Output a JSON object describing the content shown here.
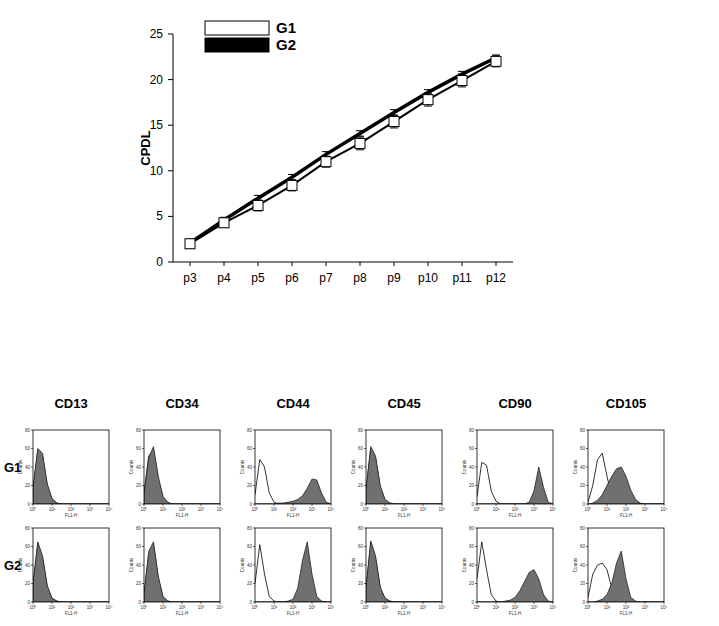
{
  "chart_data": [
    {
      "type": "line",
      "y_label": "CPDL",
      "categories": [
        "p3",
        "p4",
        "p5",
        "p6",
        "p7",
        "p8",
        "p9",
        "p10",
        "p11",
        "p12"
      ],
      "ylim": [
        0,
        25
      ],
      "yticks": [
        0,
        5,
        10,
        15,
        20,
        25
      ],
      "legend": "top-left",
      "series": [
        {
          "name": "G1",
          "color": "#ffffff",
          "marker": "square",
          "line_style": "solid",
          "values": [
            2.0,
            4.3,
            6.2,
            8.4,
            11.0,
            13.0,
            15.4,
            17.8,
            19.9,
            22.0
          ],
          "errors": [
            0.5,
            0.5,
            0.6,
            0.6,
            0.6,
            0.7,
            0.7,
            0.7,
            0.7,
            0.6
          ]
        },
        {
          "name": "G2",
          "color": "#000000",
          "marker": "none",
          "line_style": "solid",
          "values": [
            2.1,
            4.6,
            7.0,
            9.3,
            11.8,
            14.1,
            16.4,
            18.6,
            20.6,
            22.4
          ],
          "errors": [
            0.3,
            0.3,
            0.3,
            0.3,
            0.3,
            0.3,
            0.3,
            0.3,
            0.3,
            0.3
          ]
        }
      ]
    },
    {
      "type": "flow_histogram",
      "log": "x",
      "x": [
        1,
        1.778,
        3.162,
        5.623,
        10,
        17.78,
        31.62,
        56.23,
        100,
        177.8,
        316.2,
        562.3,
        1000,
        1778,
        3162,
        5623,
        10000
      ],
      "xlim": [
        1,
        10000
      ],
      "xticks": [
        {
          "value": 1,
          "label": "10⁰"
        },
        {
          "value": 10,
          "label": "10¹"
        },
        {
          "value": 100,
          "label": "10²"
        },
        {
          "value": 1000,
          "label": "10³"
        },
        {
          "value": 10000,
          "label": "10⁴"
        }
      ],
      "ylim": [
        0,
        80
      ],
      "yticks": [
        0,
        20,
        40,
        60,
        80
      ],
      "x_label": "FL1-H",
      "y_label": "Counts",
      "columns": [
        "CD13",
        "CD34",
        "CD44",
        "CD45",
        "CD90",
        "CD105"
      ],
      "rows": [
        {
          "name": "G1",
          "panels": [
            {
              "series": [
                {
                  "color": "#ffffff",
                  "values": [
                    15,
                    58,
                    52,
                    20,
                    5,
                    1,
                    0,
                    0,
                    0,
                    0,
                    0,
                    0,
                    0,
                    0,
                    0,
                    0,
                    0
                  ]
                },
                {
                  "color": "#707070",
                  "values": [
                    18,
                    60,
                    55,
                    22,
                    6,
                    1,
                    0,
                    0,
                    0,
                    0,
                    0,
                    0,
                    0,
                    0,
                    0,
                    0,
                    0
                  ]
                }
              ]
            },
            {
              "series": [
                {
                  "color": "#ffffff",
                  "values": [
                    12,
                    52,
                    58,
                    26,
                    7,
                    1,
                    0,
                    0,
                    0,
                    0,
                    0,
                    0,
                    0,
                    0,
                    0,
                    0,
                    0
                  ]
                },
                {
                  "color": "#707070",
                  "values": [
                    10,
                    50,
                    62,
                    30,
                    8,
                    2,
                    0,
                    0,
                    0,
                    0,
                    0,
                    0,
                    0,
                    0,
                    0,
                    0,
                    0
                  ]
                }
              ]
            },
            {
              "series": [
                {
                  "color": "#ffffff",
                  "values": [
                    10,
                    48,
                    40,
                    12,
                    2,
                    0,
                    0,
                    0,
                    0,
                    0,
                    0,
                    0,
                    0,
                    0,
                    0,
                    0,
                    0
                  ]
                },
                {
                  "color": "#707070",
                  "values": [
                    0,
                    0,
                    0,
                    0,
                    0,
                    1,
                    1,
                    2,
                    3,
                    5,
                    9,
                    17,
                    27,
                    26,
                    12,
                    2,
                    0
                  ]
                }
              ]
            },
            {
              "series": [
                {
                  "color": "#ffffff",
                  "values": [
                    14,
                    60,
                    50,
                    18,
                    4,
                    1,
                    0,
                    0,
                    0,
                    0,
                    0,
                    0,
                    0,
                    0,
                    0,
                    0,
                    0
                  ]
                },
                {
                  "color": "#707070",
                  "values": [
                    16,
                    62,
                    52,
                    20,
                    5,
                    1,
                    0,
                    0,
                    0,
                    0,
                    0,
                    0,
                    0,
                    0,
                    0,
                    0,
                    0
                  ]
                }
              ]
            },
            {
              "series": [
                {
                  "color": "#ffffff",
                  "values": [
                    8,
                    45,
                    42,
                    14,
                    3,
                    0,
                    0,
                    0,
                    0,
                    0,
                    0,
                    0,
                    0,
                    0,
                    0,
                    0,
                    0
                  ]
                },
                {
                  "color": "#707070",
                  "values": [
                    0,
                    0,
                    0,
                    0,
                    0,
                    0,
                    0,
                    0,
                    0,
                    0,
                    0,
                    2,
                    14,
                    40,
                    18,
                    2,
                    0
                  ]
                }
              ]
            },
            {
              "series": [
                {
                  "color": "#ffffff",
                  "values": [
                    2,
                    20,
                    48,
                    55,
                    30,
                    8,
                    2,
                    0,
                    0,
                    0,
                    0,
                    0,
                    0,
                    0,
                    0,
                    0,
                    0
                  ]
                },
                {
                  "color": "#707070",
                  "values": [
                    0,
                    1,
                    4,
                    10,
                    20,
                    30,
                    38,
                    40,
                    30,
                    15,
                    5,
                    1,
                    0,
                    0,
                    0,
                    0,
                    0
                  ]
                }
              ]
            }
          ]
        },
        {
          "name": "G2",
          "panels": [
            {
              "series": [
                {
                  "color": "#ffffff",
                  "values": [
                    18,
                    62,
                    48,
                    16,
                    4,
                    1,
                    0,
                    0,
                    0,
                    0,
                    0,
                    0,
                    0,
                    0,
                    0,
                    0,
                    0
                  ]
                },
                {
                  "color": "#707070",
                  "values": [
                    20,
                    65,
                    50,
                    18,
                    4,
                    1,
                    0,
                    0,
                    0,
                    0,
                    0,
                    0,
                    0,
                    0,
                    0,
                    0,
                    0
                  ]
                }
              ]
            },
            {
              "series": [
                {
                  "color": "#ffffff",
                  "values": [
                    8,
                    52,
                    62,
                    26,
                    5,
                    1,
                    0,
                    0,
                    0,
                    0,
                    0,
                    0,
                    0,
                    0,
                    0,
                    0,
                    0
                  ]
                },
                {
                  "color": "#707070",
                  "values": [
                    8,
                    55,
                    65,
                    28,
                    6,
                    1,
                    0,
                    0,
                    0,
                    0,
                    0,
                    0,
                    0,
                    0,
                    0,
                    0,
                    0
                  ]
                }
              ]
            },
            {
              "series": [
                {
                  "color": "#ffffff",
                  "values": [
                    20,
                    62,
                    30,
                    6,
                    1,
                    0,
                    0,
                    0,
                    0,
                    0,
                    0,
                    0,
                    0,
                    0,
                    0,
                    0,
                    0
                  ]
                },
                {
                  "color": "#707070",
                  "values": [
                    0,
                    0,
                    0,
                    0,
                    0,
                    0,
                    0,
                    1,
                    3,
                    15,
                    45,
                    65,
                    30,
                    6,
                    1,
                    0,
                    0
                  ]
                }
              ]
            },
            {
              "series": [
                {
                  "color": "#ffffff",
                  "values": [
                    14,
                    64,
                    48,
                    15,
                    4,
                    1,
                    0,
                    0,
                    0,
                    0,
                    0,
                    0,
                    0,
                    0,
                    0,
                    0,
                    0
                  ]
                },
                {
                  "color": "#707070",
                  "values": [
                    16,
                    66,
                    50,
                    16,
                    4,
                    1,
                    0,
                    0,
                    0,
                    0,
                    0,
                    0,
                    0,
                    0,
                    0,
                    0,
                    0
                  ]
                }
              ]
            },
            {
              "series": [
                {
                  "color": "#ffffff",
                  "values": [
                    25,
                    65,
                    35,
                    8,
                    1,
                    0,
                    0,
                    0,
                    0,
                    0,
                    0,
                    0,
                    0,
                    0,
                    0,
                    0,
                    0
                  ]
                },
                {
                  "color": "#707070",
                  "values": [
                    0,
                    0,
                    0,
                    0,
                    0,
                    0,
                    1,
                    2,
                    5,
                    12,
                    22,
                    32,
                    35,
                    25,
                    8,
                    1,
                    0
                  ]
                }
              ]
            },
            {
              "series": [
                {
                  "color": "#ffffff",
                  "values": [
                    5,
                    30,
                    40,
                    42,
                    35,
                    15,
                    4,
                    1,
                    0,
                    0,
                    0,
                    0,
                    0,
                    0,
                    0,
                    0,
                    0
                  ]
                },
                {
                  "color": "#707070",
                  "values": [
                    0,
                    0,
                    1,
                    3,
                    8,
                    20,
                    42,
                    55,
                    25,
                    5,
                    1,
                    0,
                    0,
                    0,
                    0,
                    0,
                    0
                  ]
                }
              ]
            }
          ]
        }
      ]
    }
  ]
}
